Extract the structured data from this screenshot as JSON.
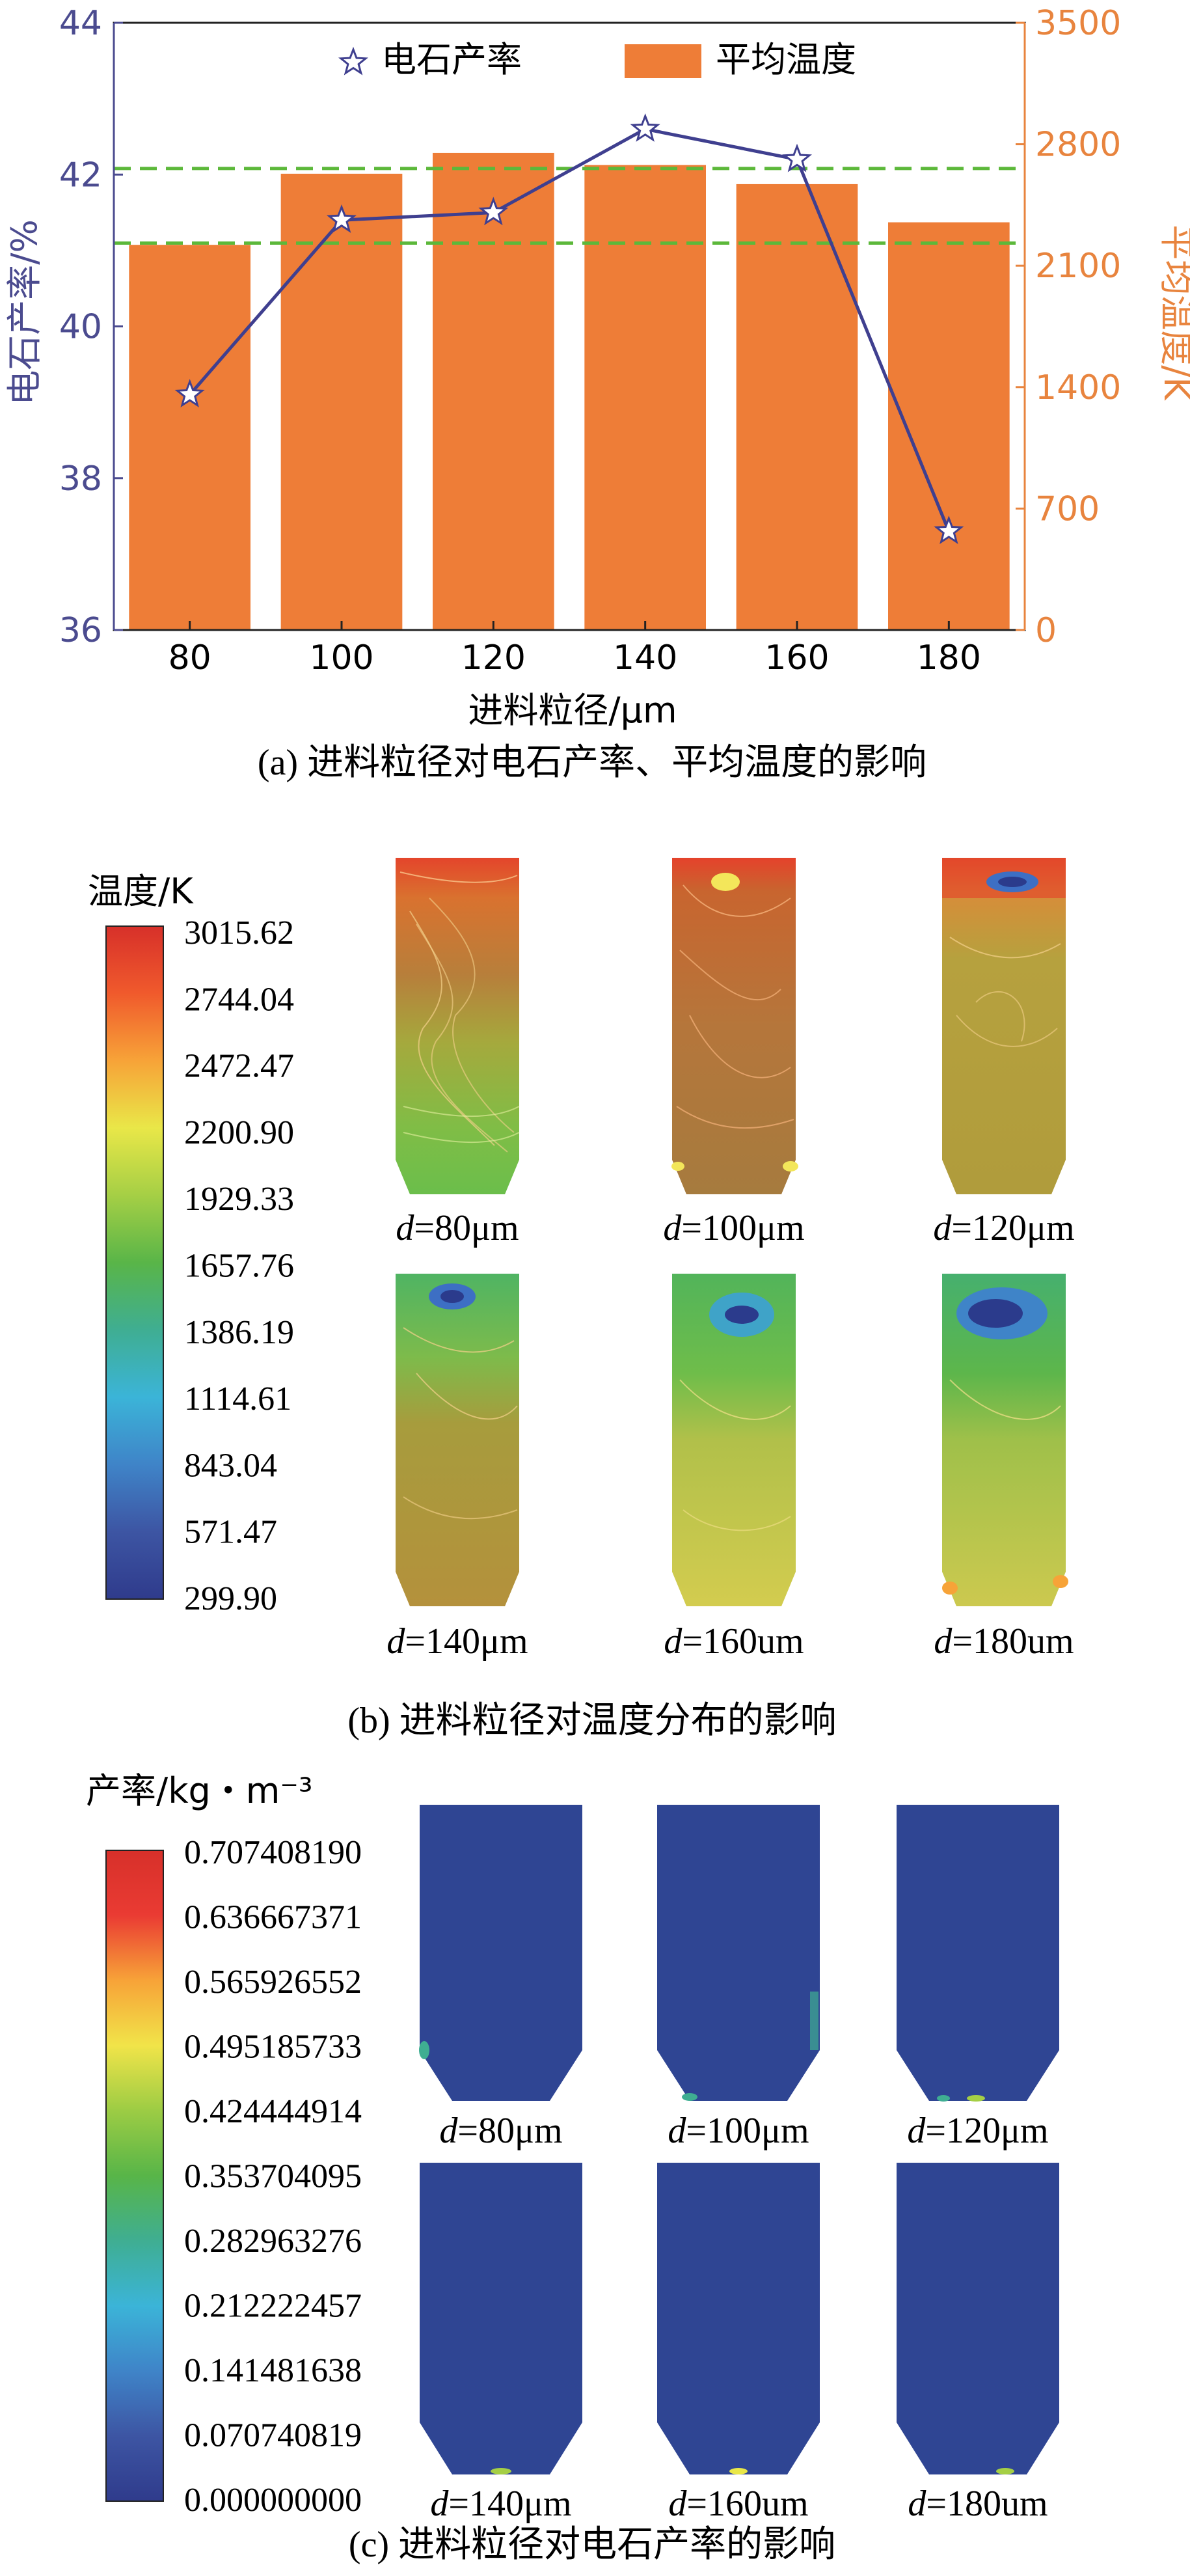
{
  "chart_data": [
    {
      "type": "bar",
      "panel_caption": "(a) 进料粒径对电石产率、平均温度的影响",
      "xlabel": "进料粒径/μm",
      "ylabel": "电石产率/%",
      "ylabel2": "平均温度/K",
      "categories": [
        "80",
        "100",
        "120",
        "140",
        "160",
        "180"
      ],
      "ylim": [
        36,
        44
      ],
      "yticks": [
        "36",
        "38",
        "40",
        "42",
        "44"
      ],
      "y2lim": [
        0,
        3500
      ],
      "y2ticks": [
        "0",
        "700",
        "1400",
        "2100",
        "2800",
        "3500"
      ],
      "legend_position": "top",
      "reference_lines_y2": [
        2230,
        2660
      ],
      "series": [
        {
          "name": "电石产率",
          "kind": "line",
          "axis": "left",
          "values": [
            39.1,
            41.4,
            41.5,
            42.6,
            42.2,
            37.3
          ]
        },
        {
          "name": "平均温度",
          "kind": "bar",
          "axis": "right",
          "values": [
            2220,
            2630,
            2750,
            2680,
            2570,
            2350
          ]
        }
      ]
    },
    {
      "type": "heatmap",
      "panel_caption": "(b) 进料粒径对温度分布的影响",
      "colorbar_title": "温度/K",
      "colorbar_labels": [
        "3015.62",
        "2744.04",
        "2472.47",
        "2200.90",
        "1929.33",
        "1657.76",
        "1386.19",
        "1114.61",
        "843.04",
        "571.47",
        "299.90"
      ],
      "panels": [
        {
          "label": "d=80μm",
          "d": "d",
          "rest": "=80μm"
        },
        {
          "label": "d=100μm",
          "d": "d",
          "rest": "=100μm"
        },
        {
          "label": "d=120μm",
          "d": "d",
          "rest": "=120μm"
        },
        {
          "label": "d=140μm",
          "d": "d",
          "rest": "=140μm"
        },
        {
          "label": "d=160um",
          "d": "d",
          "rest": "=160um"
        },
        {
          "label": "d=180um",
          "d": "d",
          "rest": "=180um"
        }
      ]
    },
    {
      "type": "heatmap",
      "panel_caption": "(c) 进料粒径对电石产率的影响",
      "colorbar_title": "产率/kg・m⁻³",
      "colorbar_labels": [
        "0.707408190",
        "0.636667371",
        "0.565926552",
        "0.495185733",
        "0.424444914",
        "0.353704095",
        "0.282963276",
        "0.212222457",
        "0.141481638",
        "0.070740819",
        "0.000000000"
      ],
      "panels": [
        {
          "label": "d=80μm",
          "d": "d",
          "rest": "=80μm"
        },
        {
          "label": "d=100μm",
          "d": "d",
          "rest": "=100μm"
        },
        {
          "label": "d=120μm",
          "d": "d",
          "rest": "=120μm"
        },
        {
          "label": "d=140μm",
          "d": "d",
          "rest": "=140μm"
        },
        {
          "label": "d=160um",
          "d": "d",
          "rest": "=160um"
        },
        {
          "label": "d=180um",
          "d": "d",
          "rest": "=180um"
        }
      ]
    }
  ],
  "colors": {
    "line": "#3f3f8f",
    "bar": "#ee7d37",
    "left_axis": "#4b4b8f",
    "right_axis": "#e8843e",
    "ref_line": "#5cb83a",
    "field_bg": "#2f4593"
  }
}
